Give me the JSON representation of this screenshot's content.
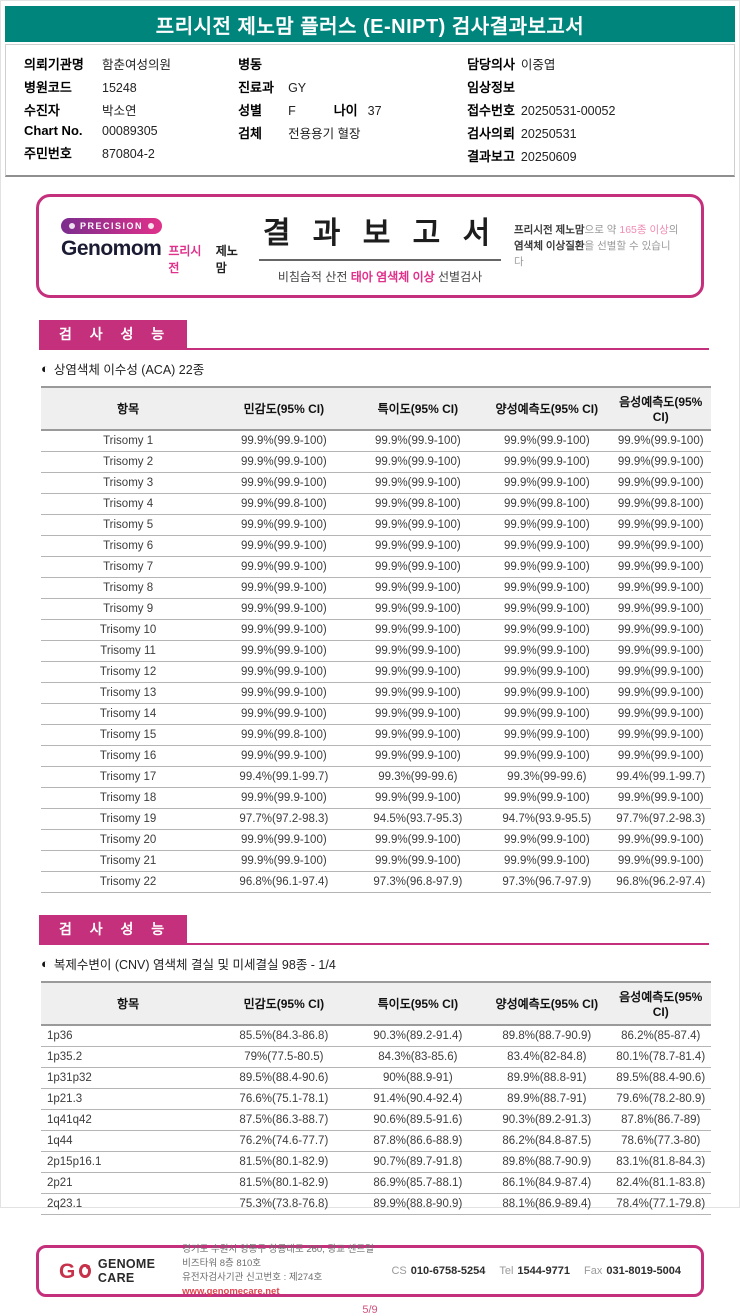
{
  "header": {
    "title": "프리시전 제노맘 플러스 (E-NIPT) 검사결과보고서"
  },
  "colors": {
    "teal": "#00857C",
    "magenta": "#C5307C",
    "crimson": "#C63249",
    "link_red": "#E0444E"
  },
  "patient": {
    "col1": [
      {
        "label": "의뢰기관명",
        "value": "함춘여성의원"
      },
      {
        "label": "병원코드",
        "value": "15248"
      },
      {
        "label": "수진자",
        "value": "박소연"
      },
      {
        "label": "Chart No.",
        "value": "00089305"
      },
      {
        "label": "주민번호",
        "value": "870804-2"
      }
    ],
    "col2": [
      {
        "label": "병동",
        "value": ""
      },
      {
        "label": "진료과",
        "value": "GY"
      },
      {
        "label": "성별",
        "value": "F",
        "label2": "나이",
        "value2": "37"
      },
      {
        "label": "검체",
        "value": "전용용기 혈장"
      }
    ],
    "col3": [
      {
        "label": "담당의사",
        "value": "이중엽"
      },
      {
        "label": "임상정보",
        "value": ""
      },
      {
        "label": "접수번호",
        "value": "20250531-00052"
      },
      {
        "label": "검사의뢰",
        "value": "20250531"
      },
      {
        "label": "결과보고",
        "value": "20250609"
      }
    ]
  },
  "banner": {
    "badge": "PRECISION",
    "brand": "Genomom",
    "brand_kr_pink": "프리시전",
    "brand_kr_dark": "제노맘",
    "title": "결 과 보 고 서",
    "subtitle_pre": "비침습적 산전 ",
    "subtitle_highlight": "태아 염색체 이상",
    "subtitle_post": " 선별검사",
    "note_bold1": "프리시전 제노맘",
    "note_text1": "으로 약 ",
    "note_pink": "165종 이상",
    "note_text2": "의 ",
    "note_bold2": "염색체 이상질환",
    "note_text3": "을 선별할 수 있습니다"
  },
  "section1": {
    "heading": "검 사 성 능",
    "bullet": "◐",
    "subtitle": "상염색체 이수성 (ACA) 22종"
  },
  "table1": {
    "headers": [
      "항목",
      "민감도(95% CI)",
      "특이도(95% CI)",
      "양성예측도(95% CI)",
      "음성예측도(95% CI)"
    ],
    "rows": [
      {
        "item": "Trisomy 1",
        "values": [
          "99.9%(99.9-100)",
          "99.9%(99.9-100)",
          "99.9%(99.9-100)",
          "99.9%(99.9-100)"
        ]
      },
      {
        "item": "Trisomy 2",
        "values": [
          "99.9%(99.9-100)",
          "99.9%(99.9-100)",
          "99.9%(99.9-100)",
          "99.9%(99.9-100)"
        ]
      },
      {
        "item": "Trisomy 3",
        "values": [
          "99.9%(99.9-100)",
          "99.9%(99.9-100)",
          "99.9%(99.9-100)",
          "99.9%(99.9-100)"
        ]
      },
      {
        "item": "Trisomy 4",
        "values": [
          "99.9%(99.8-100)",
          "99.9%(99.8-100)",
          "99.9%(99.8-100)",
          "99.9%(99.8-100)"
        ]
      },
      {
        "item": "Trisomy 5",
        "values": [
          "99.9%(99.9-100)",
          "99.9%(99.9-100)",
          "99.9%(99.9-100)",
          "99.9%(99.9-100)"
        ]
      },
      {
        "item": "Trisomy 6",
        "values": [
          "99.9%(99.9-100)",
          "99.9%(99.9-100)",
          "99.9%(99.9-100)",
          "99.9%(99.9-100)"
        ]
      },
      {
        "item": "Trisomy 7",
        "values": [
          "99.9%(99.9-100)",
          "99.9%(99.9-100)",
          "99.9%(99.9-100)",
          "99.9%(99.9-100)"
        ]
      },
      {
        "item": "Trisomy 8",
        "values": [
          "99.9%(99.9-100)",
          "99.9%(99.9-100)",
          "99.9%(99.9-100)",
          "99.9%(99.9-100)"
        ]
      },
      {
        "item": "Trisomy 9",
        "values": [
          "99.9%(99.9-100)",
          "99.9%(99.9-100)",
          "99.9%(99.9-100)",
          "99.9%(99.9-100)"
        ]
      },
      {
        "item": "Trisomy 10",
        "values": [
          "99.9%(99.9-100)",
          "99.9%(99.9-100)",
          "99.9%(99.9-100)",
          "99.9%(99.9-100)"
        ]
      },
      {
        "item": "Trisomy 11",
        "values": [
          "99.9%(99.9-100)",
          "99.9%(99.9-100)",
          "99.9%(99.9-100)",
          "99.9%(99.9-100)"
        ]
      },
      {
        "item": "Trisomy 12",
        "values": [
          "99.9%(99.9-100)",
          "99.9%(99.9-100)",
          "99.9%(99.9-100)",
          "99.9%(99.9-100)"
        ]
      },
      {
        "item": "Trisomy 13",
        "values": [
          "99.9%(99.9-100)",
          "99.9%(99.9-100)",
          "99.9%(99.9-100)",
          "99.9%(99.9-100)"
        ]
      },
      {
        "item": "Trisomy 14",
        "values": [
          "99.9%(99.9-100)",
          "99.9%(99.9-100)",
          "99.9%(99.9-100)",
          "99.9%(99.9-100)"
        ]
      },
      {
        "item": "Trisomy 15",
        "values": [
          "99.9%(99.8-100)",
          "99.9%(99.9-100)",
          "99.9%(99.9-100)",
          "99.9%(99.9-100)"
        ]
      },
      {
        "item": "Trisomy 16",
        "values": [
          "99.9%(99.9-100)",
          "99.9%(99.9-100)",
          "99.9%(99.9-100)",
          "99.9%(99.9-100)"
        ]
      },
      {
        "item": "Trisomy 17",
        "values": [
          "99.4%(99.1-99.7)",
          "99.3%(99-99.6)",
          "99.3%(99-99.6)",
          "99.4%(99.1-99.7)"
        ]
      },
      {
        "item": "Trisomy 18",
        "values": [
          "99.9%(99.9-100)",
          "99.9%(99.9-100)",
          "99.9%(99.9-100)",
          "99.9%(99.9-100)"
        ]
      },
      {
        "item": "Trisomy 19",
        "values": [
          "97.7%(97.2-98.3)",
          "94.5%(93.7-95.3)",
          "94.7%(93.9-95.5)",
          "97.7%(97.2-98.3)"
        ]
      },
      {
        "item": "Trisomy 20",
        "values": [
          "99.9%(99.9-100)",
          "99.9%(99.9-100)",
          "99.9%(99.9-100)",
          "99.9%(99.9-100)"
        ]
      },
      {
        "item": "Trisomy 21",
        "values": [
          "99.9%(99.9-100)",
          "99.9%(99.9-100)",
          "99.9%(99.9-100)",
          "99.9%(99.9-100)"
        ]
      },
      {
        "item": "Trisomy 22",
        "values": [
          "96.8%(96.1-97.4)",
          "97.3%(96.8-97.9)",
          "97.3%(96.7-97.9)",
          "96.8%(96.2-97.4)"
        ]
      }
    ]
  },
  "section2": {
    "heading": "검 사 성 능",
    "bullet": "◐",
    "subtitle": "복제수변이 (CNV) 염색체 결실 및 미세결실 98종 - 1/4"
  },
  "table2": {
    "headers": [
      "항목",
      "민감도(95% CI)",
      "특이도(95% CI)",
      "양성예측도(95% CI)",
      "음성예측도(95% CI)"
    ],
    "rows": [
      {
        "item": "1p36",
        "values": [
          "85.5%(84.3-86.8)",
          "90.3%(89.2-91.4)",
          "89.8%(88.7-90.9)",
          "86.2%(85-87.4)"
        ]
      },
      {
        "item": "1p35.2",
        "values": [
          "79%(77.5-80.5)",
          "84.3%(83-85.6)",
          "83.4%(82-84.8)",
          "80.1%(78.7-81.4)"
        ]
      },
      {
        "item": "1p31p32",
        "values": [
          "89.5%(88.4-90.6)",
          "90%(88.9-91)",
          "89.9%(88.8-91)",
          "89.5%(88.4-90.6)"
        ]
      },
      {
        "item": "1p21.3",
        "values": [
          "76.6%(75.1-78.1)",
          "91.4%(90.4-92.4)",
          "89.9%(88.7-91)",
          "79.6%(78.2-80.9)"
        ]
      },
      {
        "item": "1q41q42",
        "values": [
          "87.5%(86.3-88.7)",
          "90.6%(89.5-91.6)",
          "90.3%(89.2-91.3)",
          "87.8%(86.7-89)"
        ]
      },
      {
        "item": "1q44",
        "values": [
          "76.2%(74.6-77.7)",
          "87.8%(86.6-88.9)",
          "86.2%(84.8-87.5)",
          "78.6%(77.3-80)"
        ]
      },
      {
        "item": "2p15p16.1",
        "values": [
          "81.5%(80.1-82.9)",
          "90.7%(89.7-91.8)",
          "89.8%(88.7-90.9)",
          "83.1%(81.8-84.3)"
        ]
      },
      {
        "item": "2p21",
        "values": [
          "81.5%(80.1-82.9)",
          "86.9%(85.7-88.1)",
          "86.1%(84.9-87.4)",
          "82.4%(81.1-83.8)"
        ]
      },
      {
        "item": "2q23.1",
        "values": [
          "75.3%(73.8-76.8)",
          "89.9%(88.8-90.9)",
          "88.1%(86.9-89.4)",
          "78.4%(77.1-79.8)"
        ]
      }
    ]
  },
  "footer": {
    "company": "GENOME CARE",
    "address1": "경기도 수원시 영통구 창룡대로 260, 광교 센트럴비즈타워 8층 810호",
    "address2": "유전자검사기관 신고번호 : 제274호",
    "website": "www.genomecare.net",
    "contacts": [
      {
        "label": "CS",
        "value": "010-6758-5254"
      },
      {
        "label": "Tel",
        "value": "1544-9771"
      },
      {
        "label": "Fax",
        "value": "031-8019-5004"
      }
    ]
  },
  "page": {
    "number": "5/9"
  }
}
